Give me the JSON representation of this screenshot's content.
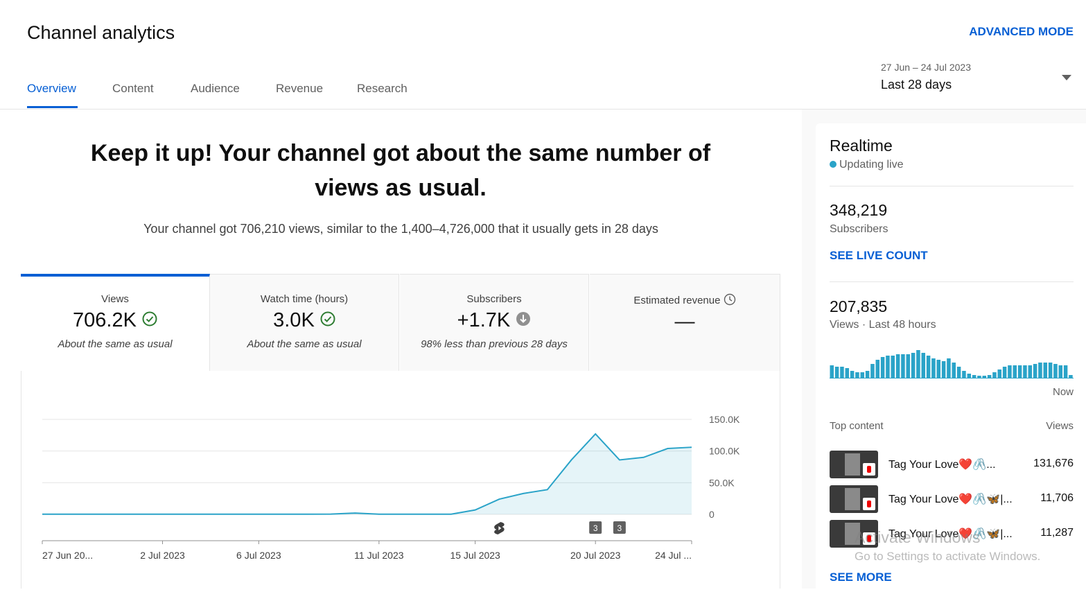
{
  "header": {
    "title": "Channel analytics",
    "advanced_mode": "ADVANCED MODE"
  },
  "tabs": [
    "Overview",
    "Content",
    "Audience",
    "Revenue",
    "Research"
  ],
  "date_range": {
    "range": "27 Jun – 24 Jul 2023",
    "label": "Last 28 days"
  },
  "headline": "Keep it up! Your channel got about the same number of views as usual.",
  "summary": "Your channel got 706,210 views, similar to the 1,400–4,726,000 that it usually gets in 28 days",
  "metrics": [
    {
      "label": "Views",
      "value": "706.2K",
      "note": "About the same as usual"
    },
    {
      "label": "Watch time (hours)",
      "value": "3.0K",
      "note": "About the same as usual"
    },
    {
      "label": "Subscribers",
      "value": "+1.7K",
      "note": "98% less than previous 28 days"
    },
    {
      "label": "Estimated revenue",
      "value": "—"
    }
  ],
  "chart_data": {
    "type": "line",
    "categories": [
      "27 Jun 20...",
      null,
      null,
      null,
      null,
      "2 Jul 2023",
      null,
      null,
      null,
      "6 Jul 2023",
      null,
      null,
      null,
      null,
      "11 Jul 2023",
      null,
      null,
      null,
      "15 Jul 2023",
      null,
      null,
      null,
      null,
      "20 Jul 2023",
      null,
      null,
      null,
      "24 Jul ..."
    ],
    "values": [
      300,
      300,
      300,
      300,
      300,
      300,
      300,
      300,
      300,
      300,
      300,
      300,
      400,
      2000,
      300,
      300,
      300,
      300,
      7000,
      24000,
      33000,
      39000,
      86000,
      127000,
      86000,
      90000,
      104000,
      106000
    ],
    "color": "#2aa3c8",
    "ylim": [
      0,
      150000
    ],
    "yticks": [
      0,
      {
        "value": 50000,
        "label": "50.0K"
      },
      {
        "value": 100000,
        "label": "100.0K"
      },
      {
        "value": 150000,
        "label": "150.0K"
      }
    ],
    "grid": true,
    "annotations": [
      "3",
      "3"
    ]
  },
  "realtime": {
    "title": "Realtime",
    "status": "Updating live",
    "subscribers": "348,219",
    "subscribers_label": "Subscribers",
    "see_live": "SEE LIVE COUNT",
    "views": "207,835",
    "views_label": "Views · Last 48 hours",
    "bars": [
      4050,
      3600,
      3600,
      3150,
      2250,
      1800,
      1800,
      2250,
      4500,
      5850,
      6750,
      7200,
      7200,
      7650,
      7650,
      7650,
      8100,
      9000,
      8100,
      7200,
      6300,
      5850,
      5400,
      6300,
      4950,
      3600,
      2250,
      1350,
      900,
      675,
      675,
      900,
      1800,
      2700,
      3600,
      4050,
      4050,
      4050,
      4050,
      4050,
      4500,
      4950,
      4950,
      4950,
      4500,
      4050,
      4050,
      900
    ],
    "bar_color": "#2aa3c8",
    "now": "Now",
    "top_content": "Top content",
    "views_column": "Views",
    "items": [
      {
        "title": "Tag Your Love❤️🖇️...",
        "views": "131,676"
      },
      {
        "title": "Tag Your Love❤️🖇️🦋|...",
        "views": "11,706"
      },
      {
        "title": "Tag Your Love❤️🖇️🦋|...",
        "views": "11,287"
      }
    ],
    "see_more": "SEE MORE"
  },
  "watermark": {
    "title": "Activate Windows",
    "body": "Go to Settings to activate Windows."
  }
}
